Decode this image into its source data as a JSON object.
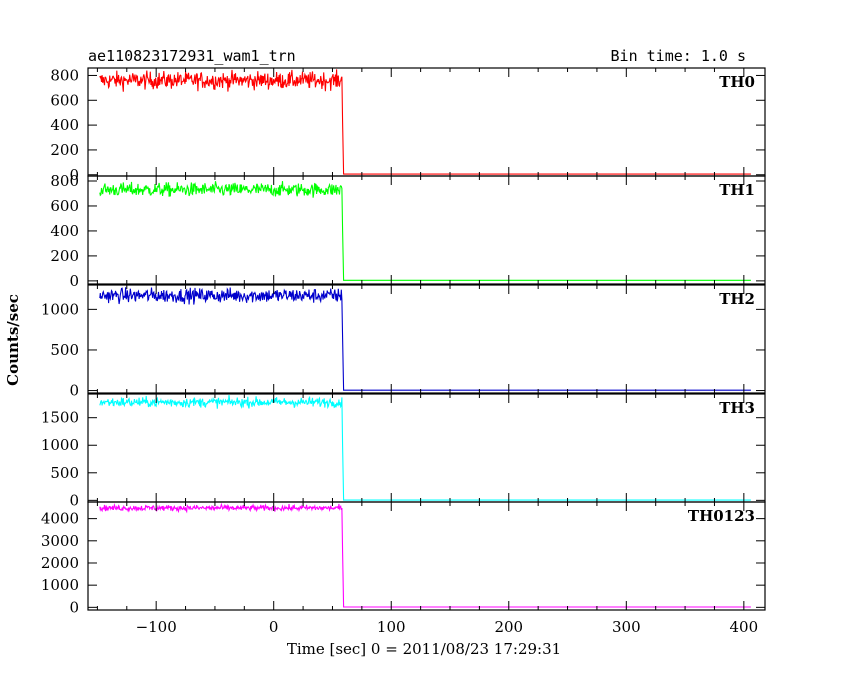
{
  "header": {
    "title": "ae110823172931_wam1_trn",
    "bin_time": "Bin time: 1.0 s"
  },
  "axes": {
    "xlabel": "Time [sec] 0 = 2011/08/23 17:29:31",
    "ylabel": "Counts/sec"
  },
  "chart_data": {
    "type": "line",
    "title": "ae110823172931_wam1_trn",
    "subtitle": "Bin time: 1.0 s",
    "xlabel": "Time [sec] 0 = 2011/08/23 17:29:31",
    "ylabel": "Counts/sec",
    "xlim": [
      -158,
      418
    ],
    "x_ticks": [
      -100,
      0,
      100,
      200,
      300,
      400
    ],
    "x_tick_labels": [
      "−100",
      "0",
      "100",
      "200",
      "300",
      "400"
    ],
    "grid": false,
    "legend": "panel labels at top-right of each panel",
    "drop_time": 58,
    "x_start": -148,
    "x_end": 406,
    "panels": [
      {
        "name": "TH0",
        "color": "#ff0000",
        "ylim": [
          -10,
          860
        ],
        "yticks": [
          0,
          200,
          400,
          600,
          800
        ],
        "level": 760,
        "noise": 35,
        "base": 5
      },
      {
        "name": "TH1",
        "color": "#00ff00",
        "ylim": [
          -25,
          840
        ],
        "yticks": [
          0,
          200,
          400,
          600,
          800
        ],
        "level": 730,
        "noise": 28,
        "base": 5
      },
      {
        "name": "TH2",
        "color": "#0000cc",
        "ylim": [
          -30,
          1300
        ],
        "yticks": [
          0,
          500,
          1000
        ],
        "level": 1170,
        "noise": 45,
        "base": 5
      },
      {
        "name": "TH3",
        "color": "#00ffff",
        "ylim": [
          -30,
          1930
        ],
        "yticks": [
          0,
          500,
          1000,
          1500
        ],
        "level": 1780,
        "noise": 45,
        "base": 5
      },
      {
        "name": "TH0123",
        "color": "#ff00ff",
        "ylim": [
          -120,
          4750
        ],
        "yticks": [
          0,
          1000,
          2000,
          3000,
          4000
        ],
        "level": 4480,
        "noise": 65,
        "base": 15
      }
    ]
  }
}
